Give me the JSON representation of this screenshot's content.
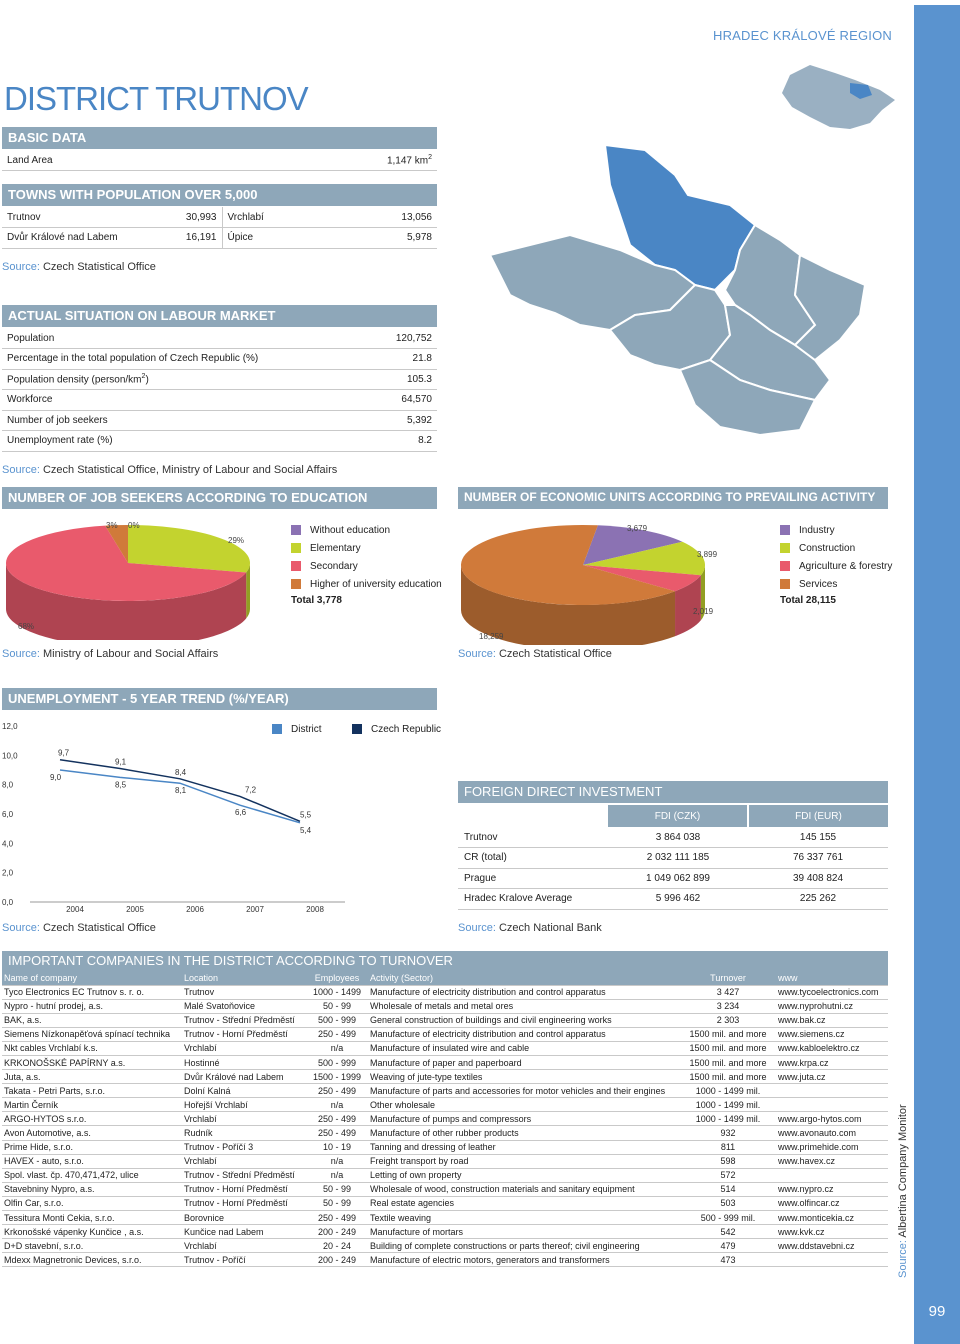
{
  "region": "HRADEC KRÁLOVÉ REGION",
  "title": "DISTRICT TRUTNOV",
  "page_number": "99",
  "side_source": {
    "label": "Source:",
    "value": "Albertina Company Monitor"
  },
  "basic": {
    "header": "BASIC DATA",
    "land_area_label": "Land Area",
    "land_area_value": "1,147 km",
    "land_area_sup": "2"
  },
  "towns": {
    "header": "TOWNS WITH POPULATION OVER 5,000",
    "rows": [
      {
        "a": "Trutnov",
        "av": "30,993",
        "b": "Vrchlabí",
        "bv": "13,056"
      },
      {
        "a": "Dvůr Králové nad Labem",
        "av": "16,191",
        "b": "Úpice",
        "bv": "5,978"
      }
    ],
    "source_label": "Source:",
    "source": "Czech Statistical Office"
  },
  "labour": {
    "header": "ACTUAL SITUATION ON LABOUR MARKET",
    "rows": [
      {
        "label": "Population",
        "value": "120,752"
      },
      {
        "label": "Percentage in the total population of Czech Republic (%)",
        "value": "21.8"
      },
      {
        "label": "Population density (person/km",
        "sup": "2",
        "label_end": ")",
        "value": "105.3"
      },
      {
        "label": "Workforce",
        "value": "64,570"
      },
      {
        "label": "Number of job seekers",
        "value": "5,392"
      },
      {
        "label": "Unemployment rate (%)",
        "value": "8.2"
      }
    ],
    "source_label": "Source:",
    "source": "Czech Statistical Office, Ministry of Labour and Social Affairs"
  },
  "edu": {
    "header": "NUMBER OF JOB SEEKERS ACCORDING TO EDUCATION",
    "legend": [
      "Without education",
      "Elementary",
      "Secondary",
      "Higher of university education"
    ],
    "total": "Total 3,778",
    "source_label": "Source:",
    "source": "Ministry of Labour and Social Affairs"
  },
  "econ": {
    "header": "NUMBER OF ECONOMIC UNITS ACCORDING TO PREVAILING ACTIVITY",
    "legend": [
      "Industry",
      "Construction",
      "Agriculture & forestry",
      "Services"
    ],
    "total": "Total 28,115",
    "source_label": "Source:",
    "source": "Czech Statistical Office"
  },
  "trend": {
    "header": "UNEMPLOYMENT - 5 YEAR TREND (%/YEAR)",
    "legend_district": "District",
    "legend_cr": "Czech Republic",
    "source_label": "Source:",
    "source": "Czech Statistical Office"
  },
  "fdi": {
    "header": "FOREIGN DIRECT INVESTMENT",
    "col1": "FDI (CZK)",
    "col2": "FDI (EUR)",
    "rows": [
      {
        "name": "Trutnov",
        "czk": "3 864 038",
        "eur": "145 155"
      },
      {
        "name": "CR (total)",
        "czk": "2 032 111 185",
        "eur": "76 337 761"
      },
      {
        "name": "Prague",
        "czk": "1 049 062 899",
        "eur": "39 408 824"
      },
      {
        "name": "Hradec Kralove Average",
        "czk": "5 996 462",
        "eur": "225 262"
      }
    ],
    "source_label": "Source:",
    "source": "Czech National Bank"
  },
  "companies": {
    "header": "IMPORTANT COMPANIES IN THE DISTRICT ACCORDING TO TURNOVER",
    "columns": [
      "Name of company",
      "Location",
      "Employees",
      "Activity (Sector)",
      "Turnover",
      "www"
    ],
    "rows": [
      [
        "Tyco Electronics EC Trutnov s. r. o.",
        "Trutnov",
        "1000 - 1499",
        "Manufacture of electricity distribution and control apparatus",
        "3 427",
        "www.tycoelectronics.com"
      ],
      [
        "Nypro - hutní prodej, a.s.",
        "Malé Svatoňovice",
        "50 - 99",
        "Wholesale of metals and metal ores",
        "3 234",
        "www.nyprohutni.cz"
      ],
      [
        "BAK, a.s.",
        "Trutnov - Střední Předměstí",
        "500 - 999",
        "General construction of buildings and civil engineering works",
        "2 303",
        "www.bak.cz"
      ],
      [
        "Siemens Nízkonapěťová spínací technika",
        "Trutnov - Horní Předměstí",
        "250 - 499",
        "Manufacture of electricity distribution and control apparatus",
        "1500 mil. and more",
        "www.siemens.cz"
      ],
      [
        "Nkt cables Vrchlabí k.s.",
        "Vrchlabí",
        "n/a",
        "Manufacture of insulated wire and cable",
        "1500 mil. and more",
        "www.kabloelektro.cz"
      ],
      [
        "KRKONOŠSKÉ PAPÍRNY a.s.",
        "Hostinné",
        "500 - 999",
        "Manufacture of paper and paperboard",
        "1500 mil. and more",
        "www.krpa.cz"
      ],
      [
        "Juta, a.s.",
        "Dvůr Králové nad Labem",
        "1500 - 1999",
        "Weaving of jute-type textiles",
        "1500 mil. and more",
        "www.juta.cz"
      ],
      [
        "Takata - Petri Parts, s.r.o.",
        "Dolní Kalná",
        "250 - 499",
        "Manufacture of parts and accessories for motor vehicles and their engines",
        "1000 - 1499 mil.",
        ""
      ],
      [
        "Martin Černík",
        "Hořejší Vrchlabí",
        "n/a",
        "Other wholesale",
        "1000 - 1499 mil.",
        ""
      ],
      [
        "ARGO-HYTOS s.r.o.",
        "Vrchlabí",
        "250 - 499",
        "Manufacture of pumps and compressors",
        "1000 - 1499 mil.",
        "www.argo-hytos.com"
      ],
      [
        "Avon Automotive, a.s.",
        "Rudník",
        "250 - 499",
        "Manufacture of other rubber products",
        "932",
        "www.avonauto.com"
      ],
      [
        "Prime Hide, s.r.o.",
        "Trutnov - Poříčí 3",
        "10 - 19",
        "Tanning and dressing of leather",
        "811",
        "www.primehide.com"
      ],
      [
        "HAVEX - auto, s.r.o.",
        "Vrchlabí",
        "n/a",
        "Freight transport by road",
        "598",
        "www.havex.cz"
      ],
      [
        "Spol. vlast. čp. 470,471,472, ulice",
        "Trutnov - Střední Předměstí",
        "n/a",
        "Letting of own property",
        "572",
        ""
      ],
      [
        "Stavebniny Nypro, a.s.",
        "Trutnov - Horní Předměstí",
        "50 - 99",
        "Wholesale of wood, construction materials and sanitary equipment",
        "514",
        "www.nypro.cz"
      ],
      [
        "Olfin Car, s.r.o.",
        "Trutnov - Horní Předměstí",
        "50 - 99",
        "Real estate agencies",
        "503",
        "www.olfincar.cz"
      ],
      [
        "Tessitura Monti Cekia, s.r.o.",
        "Borovnice",
        "250 - 499",
        "Textile weaving",
        "500 - 999 mil.",
        "www.monticekia.cz"
      ],
      [
        "Krkonošské vápenky Kunčice , a.s.",
        "Kunčice nad Labem",
        "200 - 249",
        "Manufacture of mortars",
        "542",
        "www.kvk.cz"
      ],
      [
        "D+D stavební, s.r.o.",
        "Vrchlabí",
        "20 - 24",
        "Building of complete constructions or parts thereof; civil engineering",
        "479",
        "www.ddstavebni.cz"
      ],
      [
        "Mdexx Magnetronic Devices, s.r.o.",
        "Trutnov - Poříčí",
        "200 - 249",
        "Manufacture of electric motors, generators and transformers",
        "473",
        ""
      ]
    ]
  },
  "chart_data": [
    {
      "type": "pie",
      "title": "NUMBER OF JOB SEEKERS ACCORDING TO EDUCATION",
      "categories": [
        "Without education",
        "Elementary",
        "Secondary",
        "Higher of university education"
      ],
      "values": [
        0,
        29,
        68,
        3
      ],
      "value_labels": [
        "0%",
        "29%",
        "68%",
        "3%"
      ],
      "colors": [
        "#8b72b3",
        "#c3d32f",
        "#e95a6c",
        "#d07a3a"
      ],
      "total": 3778
    },
    {
      "type": "pie",
      "title": "NUMBER OF ECONOMIC UNITS ACCORDING TO PREVAILING ACTIVITY",
      "categories": [
        "Industry",
        "Construction",
        "Agriculture & forestry",
        "Services"
      ],
      "values": [
        3679,
        3899,
        2019,
        18259
      ],
      "value_labels": [
        "3,679",
        "3,899",
        "2,019",
        "18,259"
      ],
      "colors": [
        "#8b72b3",
        "#c3d32f",
        "#e95a6c",
        "#d07a3a"
      ],
      "total": 28115
    },
    {
      "type": "line",
      "title": "UNEMPLOYMENT - 5 YEAR TREND (%/YEAR)",
      "x": [
        "2004",
        "2005",
        "2006",
        "2007",
        "2008"
      ],
      "series": [
        {
          "name": "District",
          "values": [
            9.0,
            8.5,
            8.1,
            6.6,
            5.4
          ],
          "labels": [
            "9,0",
            "8,5",
            "8,1",
            "6,6",
            "5,4"
          ],
          "color": "#4a86c5"
        },
        {
          "name": "Czech Republic",
          "values": [
            9.7,
            9.1,
            8.4,
            7.2,
            5.5
          ],
          "labels": [
            "9,7",
            "9,1",
            "8,4",
            "7,2",
            "5,5"
          ],
          "color": "#13325e"
        }
      ],
      "ylim": [
        0,
        12
      ],
      "yticks": [
        "0,0",
        "2,0",
        "4,0",
        "6,0",
        "8,0",
        "10,0",
        "12,0"
      ]
    }
  ]
}
